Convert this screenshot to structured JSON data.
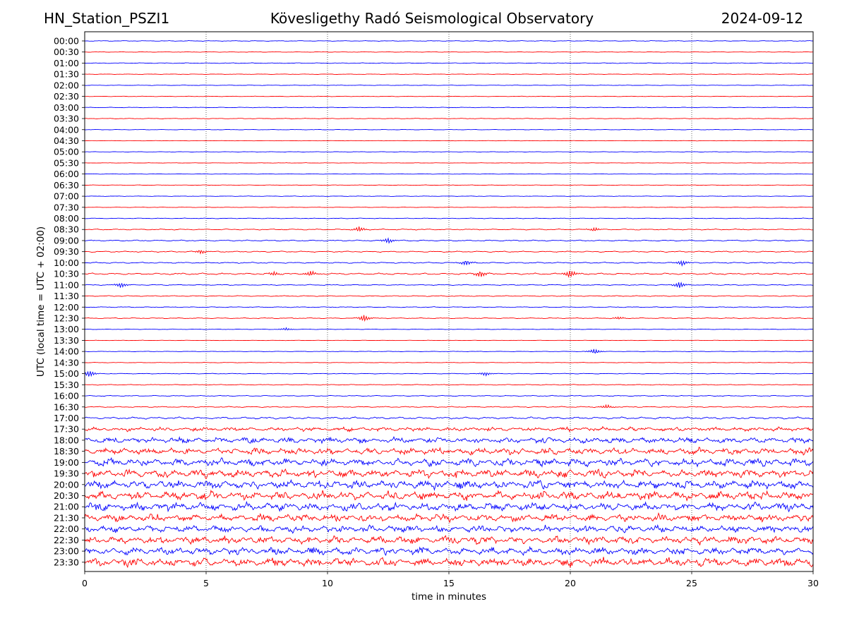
{
  "header": {
    "station": "HN_Station_PSZI1",
    "observatory": "Kövesligethy Radó Seismological Observatory",
    "date": "2024-09-12"
  },
  "chart_data": {
    "type": "line",
    "title": "Kövesligethy Radó Seismological Observatory",
    "xlabel": "time in minutes",
    "ylabel": "UTC (local time = UTC + 02:00)",
    "xlim": [
      0,
      30
    ],
    "x_ticks": [
      "0",
      "5",
      "10",
      "15",
      "20",
      "25",
      "30"
    ],
    "vertical_gridlines_at_minutes": [
      5,
      10,
      15,
      20,
      25
    ],
    "grid_style": "dotted vertical",
    "trace_colors": [
      "#0000ff",
      "#ff0000"
    ],
    "rows": [
      "00:00",
      "00:30",
      "01:00",
      "01:30",
      "02:00",
      "02:30",
      "03:00",
      "03:30",
      "04:00",
      "04:30",
      "05:00",
      "05:30",
      "06:00",
      "06:30",
      "07:00",
      "07:30",
      "08:00",
      "08:30",
      "09:00",
      "09:30",
      "10:00",
      "10:30",
      "11:00",
      "11:30",
      "12:00",
      "12:30",
      "13:00",
      "13:30",
      "14:00",
      "14:30",
      "15:00",
      "15:30",
      "16:00",
      "16:30",
      "17:00",
      "17:30",
      "18:00",
      "18:30",
      "19:00",
      "19:30",
      "20:00",
      "20:30",
      "21:00",
      "21:30",
      "22:00",
      "22:30",
      "23:00",
      "23:30"
    ],
    "row_noise_level": [
      0.25,
      0.2,
      0.25,
      0.2,
      0.2,
      0.2,
      0.22,
      0.25,
      0.18,
      0.15,
      0.18,
      0.15,
      0.15,
      0.18,
      0.2,
      0.2,
      0.25,
      0.4,
      0.45,
      0.45,
      0.45,
      0.6,
      0.35,
      0.35,
      0.3,
      0.35,
      0.2,
      0.15,
      0.2,
      0.2,
      0.25,
      0.3,
      0.35,
      0.4,
      0.8,
      1.1,
      1.6,
      1.8,
      2.1,
      2.2,
      2.3,
      2.3,
      2.2,
      2.0,
      1.9,
      2.0,
      2.0,
      2.4
    ],
    "notable_events": [
      {
        "row": "08:30",
        "minute": 11.3,
        "amplitude": 4
      },
      {
        "row": "08:30",
        "minute": 21.0,
        "amplitude": 3
      },
      {
        "row": "09:00",
        "minute": 12.5,
        "amplitude": 4
      },
      {
        "row": "09:30",
        "minute": 4.8,
        "amplitude": 3
      },
      {
        "row": "10:00",
        "minute": 15.7,
        "amplitude": 4
      },
      {
        "row": "10:00",
        "minute": 24.6,
        "amplitude": 4
      },
      {
        "row": "10:30",
        "minute": 7.8,
        "amplitude": 3
      },
      {
        "row": "10:30",
        "minute": 9.3,
        "amplitude": 4
      },
      {
        "row": "10:30",
        "minute": 16.3,
        "amplitude": 5
      },
      {
        "row": "10:30",
        "minute": 20.0,
        "amplitude": 6
      },
      {
        "row": "11:00",
        "minute": 1.5,
        "amplitude": 4
      },
      {
        "row": "11:00",
        "minute": 24.5,
        "amplitude": 5
      },
      {
        "row": "12:30",
        "minute": 11.5,
        "amplitude": 5
      },
      {
        "row": "12:30",
        "minute": 22.0,
        "amplitude": 2
      },
      {
        "row": "13:00",
        "minute": 8.3,
        "amplitude": 2
      },
      {
        "row": "14:00",
        "minute": 21.0,
        "amplitude": 4
      },
      {
        "row": "15:00",
        "minute": 0.2,
        "amplitude": 5
      },
      {
        "row": "15:00",
        "minute": 16.5,
        "amplitude": 3
      },
      {
        "row": "16:30",
        "minute": 21.5,
        "amplitude": 3
      }
    ]
  }
}
